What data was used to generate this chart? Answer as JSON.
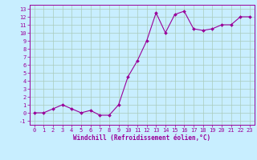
{
  "x": [
    0,
    1,
    2,
    3,
    4,
    5,
    6,
    7,
    8,
    9,
    10,
    11,
    12,
    13,
    14,
    15,
    16,
    17,
    18,
    19,
    20,
    21,
    22,
    23
  ],
  "y": [
    0,
    0,
    0.5,
    1,
    0.5,
    0,
    0.3,
    -0.3,
    -0.3,
    1,
    4.5,
    6.5,
    9,
    12.5,
    10,
    12.3,
    12.7,
    10.5,
    10.3,
    10.5,
    11,
    11,
    12,
    12
  ],
  "line_color": "#990099",
  "marker": "D",
  "marker_size": 2,
  "bg_color": "#c8eeff",
  "grid_color": "#aaccbb",
  "xlabel": "Windchill (Refroidissement éolien,°C)",
  "xlabel_color": "#990099",
  "tick_color": "#990099",
  "xlim": [
    -0.5,
    23.5
  ],
  "ylim": [
    -1.5,
    13.5
  ],
  "yticks": [
    -1,
    0,
    1,
    2,
    3,
    4,
    5,
    6,
    7,
    8,
    9,
    10,
    11,
    12,
    13
  ],
  "xticks": [
    0,
    1,
    2,
    3,
    4,
    5,
    6,
    7,
    8,
    9,
    10,
    11,
    12,
    13,
    14,
    15,
    16,
    17,
    18,
    19,
    20,
    21,
    22,
    23
  ],
  "label_fontsize": 5.5,
  "tick_fontsize": 5.0
}
